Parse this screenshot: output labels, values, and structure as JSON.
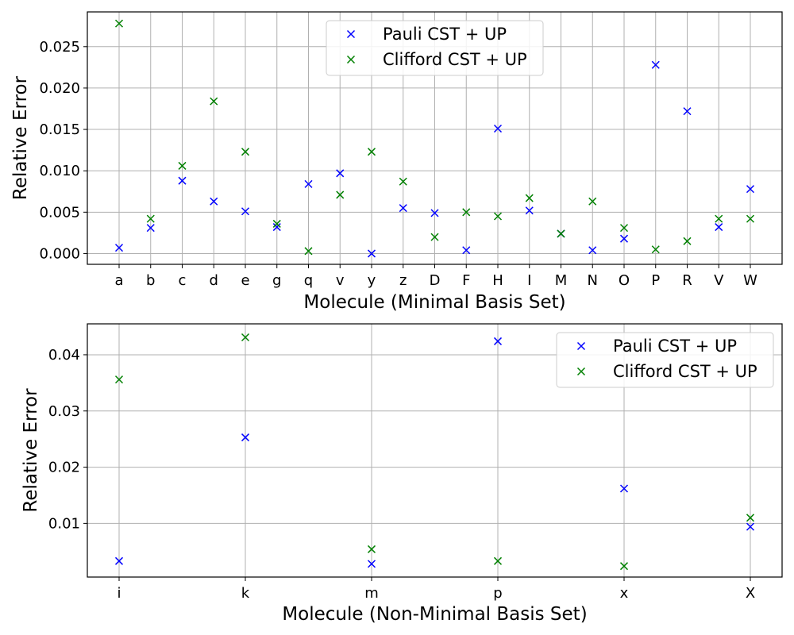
{
  "chart_data": [
    {
      "type": "scatter",
      "xlabel": "Molecule (Minimal Basis Set)",
      "ylabel": "Relative Error",
      "categories": [
        "a",
        "b",
        "c",
        "d",
        "e",
        "g",
        "q",
        "v",
        "y",
        "z",
        "D",
        "F",
        "H",
        "I",
        "M",
        "N",
        "O",
        "P",
        "R",
        "V",
        "W"
      ],
      "ylim": [
        -0.0013,
        0.0292
      ],
      "yticks": [
        "0.000",
        "0.005",
        "0.010",
        "0.015",
        "0.020",
        "0.025"
      ],
      "grid": true,
      "legend_position": "top-center",
      "marker": "x",
      "series": [
        {
          "name": "Pauli CST + UP",
          "color": "#0000ff",
          "values": [
            0.0007,
            0.0031,
            0.0088,
            0.0063,
            0.0051,
            0.0032,
            0.0084,
            0.0097,
            0.0,
            0.0055,
            0.0049,
            0.0004,
            0.0151,
            0.0052,
            0.0024,
            0.0004,
            0.0018,
            0.0228,
            0.0172,
            0.0032,
            0.0078
          ]
        },
        {
          "name": "Clifford CST + UP",
          "color": "#008000",
          "values": [
            0.0278,
            0.0042,
            0.0106,
            0.0184,
            0.0123,
            0.0036,
            0.0003,
            0.0071,
            0.0123,
            0.0087,
            0.002,
            0.005,
            0.0045,
            0.0067,
            0.0024,
            0.0063,
            0.0031,
            0.0005,
            0.0015,
            0.0042,
            0.0042
          ]
        }
      ]
    },
    {
      "type": "scatter",
      "xlabel": "Molecule (Non-Minimal Basis Set)",
      "ylabel": "Relative Error",
      "categories": [
        "i",
        "k",
        "m",
        "p",
        "x",
        "X"
      ],
      "ylim": [
        0.00045,
        0.0455
      ],
      "yticks": [
        "0.01",
        "0.02",
        "0.03",
        "0.04"
      ],
      "grid": true,
      "legend_position": "top-right",
      "marker": "x",
      "series": [
        {
          "name": "Pauli CST + UP",
          "color": "#0000ff",
          "values": [
            0.0033,
            0.0253,
            0.0028,
            0.0424,
            0.0162,
            0.0094
          ]
        },
        {
          "name": "Clifford CST + UP",
          "color": "#008000",
          "values": [
            0.0356,
            0.0431,
            0.0054,
            0.0033,
            0.0024,
            0.011
          ]
        }
      ]
    }
  ]
}
